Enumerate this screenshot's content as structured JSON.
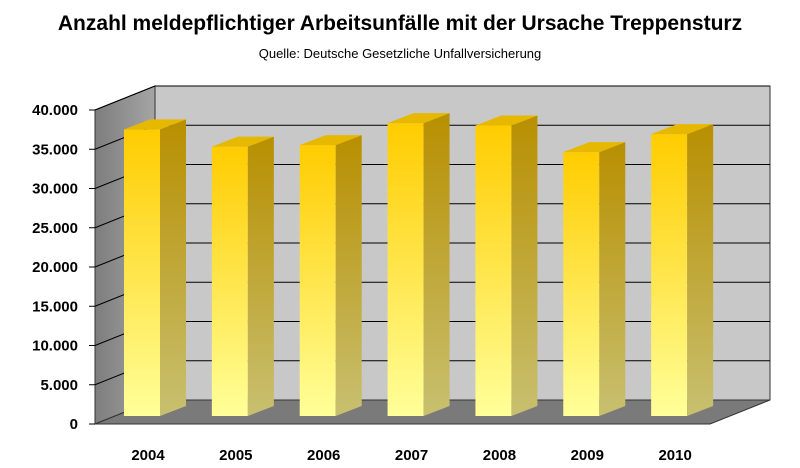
{
  "chart_data": {
    "type": "bar",
    "title": "Anzahl meldepflichtiger Arbeitsunfälle mit der Ursache Treppensturz",
    "subtitle": "Quelle: Deutsche Gesetzliche Unfallversicherung",
    "categories": [
      "2004",
      "2005",
      "2006",
      "2007",
      "2008",
      "2009",
      "2010"
    ],
    "values": [
      37400,
      35200,
      35400,
      38200,
      37900,
      34500,
      36800
    ],
    "ylim": [
      0,
      40000
    ],
    "yticks": [
      0,
      5000,
      10000,
      15000,
      20000,
      25000,
      30000,
      35000,
      40000
    ],
    "ytick_labels": [
      "0",
      "5.000",
      "10.000",
      "15.000",
      "20.000",
      "25.000",
      "30.000",
      "35.000",
      "40.000"
    ],
    "xlabel": "",
    "ylabel": "",
    "grid": true,
    "legend": "none",
    "colors": {
      "bar_top": "#ffcc00",
      "bar_bottom": "#ffff99",
      "bar_side": "#c49a00",
      "bar_cap": "#e6b800",
      "wall_back": "#c8c8c8",
      "wall_left": "#8f8f8f",
      "floor": "#7a7a7a"
    }
  }
}
